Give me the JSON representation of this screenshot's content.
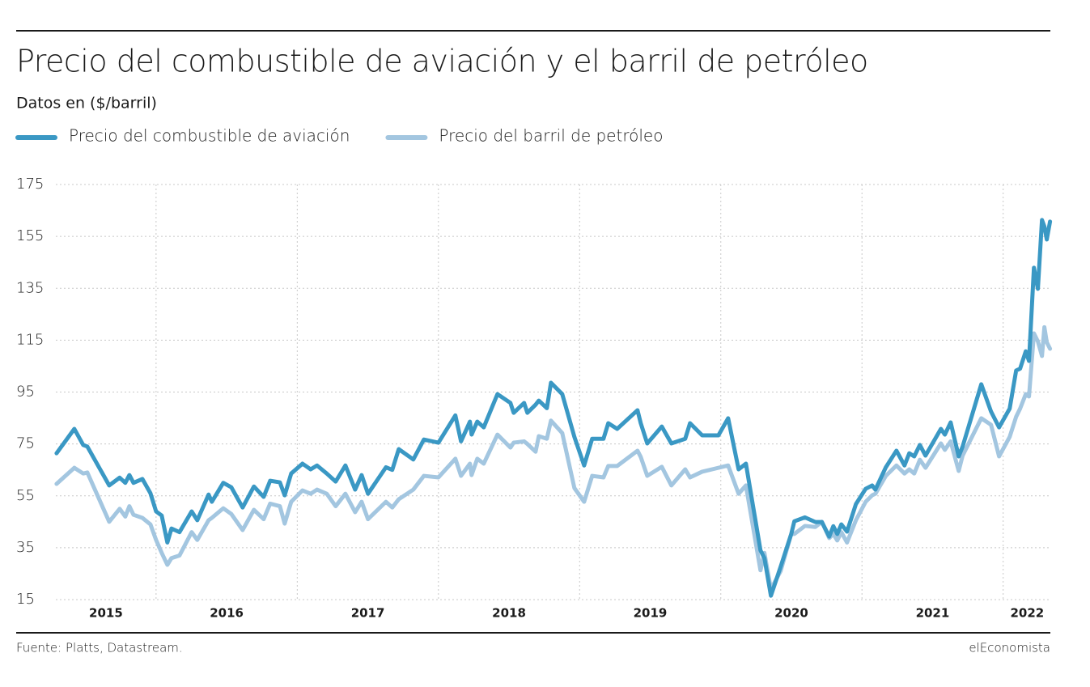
{
  "chart_data": {
    "type": "line",
    "title": "Precio del combustible de aviación y el barril de petróleo",
    "subtitle": "Datos en ($/barril)",
    "source": "Fuente: Platts, Datastream.",
    "publisher": "elEconomista",
    "grid": true,
    "legend": "top",
    "xlim": [
      2015.29,
      2022.34
    ],
    "xticks": [
      {
        "value": 2015,
        "label": "2015"
      },
      {
        "value": 2016,
        "label": "2016"
      },
      {
        "value": 2017,
        "label": "2017"
      },
      {
        "value": 2018,
        "label": "2018"
      },
      {
        "value": 2019,
        "label": "2019"
      },
      {
        "value": 2020,
        "label": "2020"
      },
      {
        "value": 2021,
        "label": "2021"
      },
      {
        "value": 2022,
        "label": "2022"
      }
    ],
    "ylim": [
      15,
      175
    ],
    "yticks": [
      15,
      35,
      55,
      75,
      95,
      115,
      135,
      155,
      175
    ],
    "x": [
      2015.295,
      2015.421,
      2015.484,
      2015.513,
      2015.668,
      2015.742,
      2015.782,
      2015.811,
      2015.84,
      2015.903,
      2015.96,
      2016.0,
      2016.04,
      2016.08,
      2016.109,
      2016.166,
      2016.252,
      2016.292,
      2016.372,
      2016.395,
      2016.476,
      2016.533,
      2016.613,
      2016.693,
      2016.762,
      2016.808,
      2016.877,
      2016.911,
      2016.957,
      2017.037,
      2017.095,
      2017.14,
      2017.209,
      2017.272,
      2017.341,
      2017.41,
      2017.456,
      2017.501,
      2017.628,
      2017.673,
      2017.719,
      2017.822,
      2017.897,
      2018.0,
      2018.12,
      2018.16,
      2018.223,
      2018.235,
      2018.275,
      2018.321,
      2018.418,
      2018.51,
      2018.533,
      2018.607,
      2018.63,
      2018.688,
      2018.711,
      2018.768,
      2018.797,
      2018.877,
      2018.963,
      2019.032,
      2019.089,
      2019.169,
      2019.203,
      2019.266,
      2019.41,
      2019.433,
      2019.479,
      2019.582,
      2019.65,
      2019.748,
      2019.782,
      2019.868,
      2019.983,
      2020.052,
      2020.126,
      2020.178,
      2020.281,
      2020.309,
      2020.355,
      2020.424,
      2020.499,
      2020.521,
      2020.596,
      2020.67,
      2020.716,
      2020.768,
      2020.797,
      2020.825,
      2020.854,
      2020.894,
      2020.957,
      2021.026,
      2021.072,
      2021.095,
      2021.169,
      2021.244,
      2021.301,
      2021.335,
      2021.37,
      2021.41,
      2021.45,
      2021.559,
      2021.587,
      2021.628,
      2021.685,
      2021.713,
      2021.845,
      2021.914,
      2021.971,
      2022.046,
      2022.092,
      2022.12,
      2022.16,
      2022.183,
      2022.218,
      2022.246,
      2022.275,
      2022.292,
      2022.309,
      2022.332
    ],
    "series": [
      {
        "name": "Precio del combustible de aviación",
        "color": "#3a98c4",
        "values": [
          71.4,
          80.8,
          74.6,
          74.0,
          59.0,
          62.0,
          60.0,
          63.0,
          60.0,
          61.5,
          56.0,
          49.0,
          47.4,
          37.0,
          42.4,
          41.0,
          49.0,
          45.6,
          55.5,
          52.7,
          60.0,
          58.3,
          50.5,
          58.6,
          54.6,
          60.8,
          60.2,
          55.2,
          63.6,
          67.4,
          65.2,
          66.7,
          63.6,
          60.5,
          66.7,
          57.4,
          63.0,
          55.8,
          66.0,
          65.0,
          73.0,
          69.0,
          76.7,
          75.5,
          86.0,
          76.0,
          83.6,
          78.6,
          83.6,
          81.4,
          94.2,
          90.8,
          87.0,
          90.8,
          87.0,
          90.1,
          91.7,
          88.8,
          98.6,
          94.2,
          77.7,
          66.7,
          77.0,
          77.0,
          83.0,
          80.8,
          88.0,
          83.0,
          75.2,
          81.7,
          75.2,
          77.0,
          83.0,
          78.3,
          78.3,
          84.9,
          65.2,
          67.4,
          34.0,
          31.0,
          16.5,
          27.7,
          40.3,
          45.2,
          46.7,
          44.9,
          44.9,
          39.3,
          43.3,
          40.3,
          44.0,
          41.2,
          51.8,
          57.7,
          59.0,
          57.4,
          66.0,
          72.4,
          66.7,
          71.4,
          70.2,
          74.6,
          70.5,
          80.8,
          78.6,
          83.3,
          70.2,
          74.0,
          98.0,
          87.5,
          81.4,
          88.6,
          103.3,
          104.0,
          110.7,
          107.0,
          142.9,
          134.8,
          161.3,
          158.8,
          153.8,
          160.7
        ]
      },
      {
        "name": "Precio del barril de petróleo",
        "color": "#a3c6e0",
        "values": [
          59.6,
          65.8,
          63.6,
          64.0,
          45.0,
          50.0,
          47.0,
          51.0,
          47.7,
          46.5,
          44.0,
          38.0,
          33.0,
          28.4,
          31.0,
          32.0,
          41.0,
          38.0,
          45.6,
          46.5,
          50.2,
          48.0,
          41.8,
          49.6,
          46.0,
          52.0,
          51.0,
          44.3,
          52.7,
          57.1,
          55.8,
          57.4,
          55.8,
          51.0,
          55.8,
          48.7,
          52.7,
          46.0,
          52.7,
          50.5,
          53.7,
          57.4,
          62.7,
          62.1,
          69.3,
          62.7,
          67.4,
          63.0,
          69.3,
          67.4,
          78.6,
          73.6,
          75.5,
          76.0,
          75.0,
          72.0,
          78.0,
          77.0,
          84.0,
          79.2,
          58.0,
          52.7,
          62.7,
          62.1,
          66.5,
          66.5,
          72.4,
          70.0,
          62.7,
          66.2,
          59.0,
          65.2,
          62.1,
          64.3,
          65.8,
          66.7,
          55.8,
          59.0,
          26.3,
          33.0,
          19.0,
          26.0,
          40.3,
          40.3,
          43.4,
          43.0,
          45.0,
          38.7,
          40.3,
          37.8,
          41.0,
          37.0,
          45.6,
          52.7,
          55.2,
          55.8,
          62.7,
          66.7,
          63.6,
          65.2,
          63.6,
          68.9,
          65.8,
          75.2,
          72.7,
          76.0,
          64.6,
          70.5,
          84.9,
          82.4,
          70.2,
          77.7,
          85.5,
          88.6,
          94.2,
          93.3,
          117.6,
          114.5,
          108.9,
          120.0,
          114.2,
          111.7
        ]
      }
    ]
  }
}
